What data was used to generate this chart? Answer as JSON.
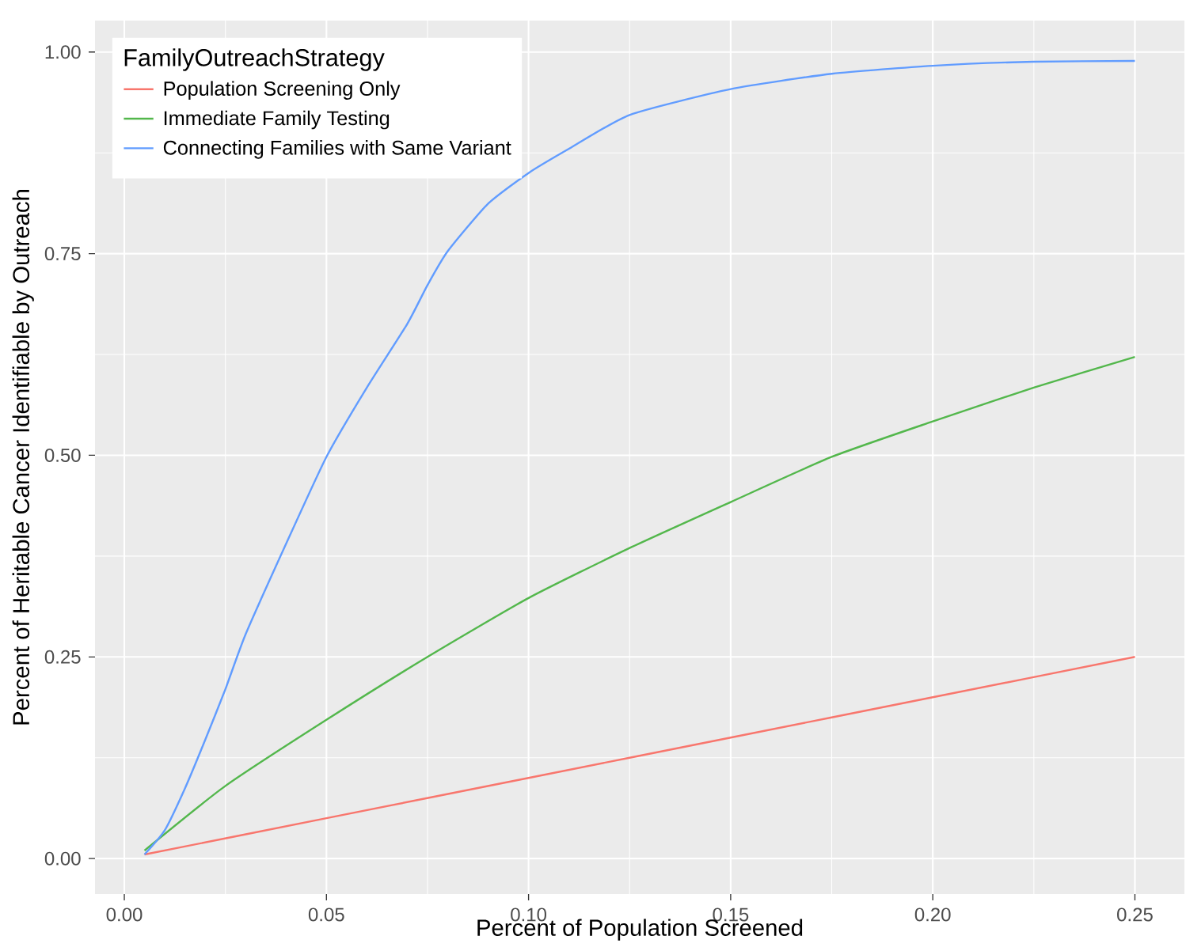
{
  "chart_data": {
    "type": "line",
    "xlabel": "Percent of Population Screened",
    "ylabel": "Percent of Heritable Cancer Identifiable by Outreach",
    "legend_title": "FamilyOutreachStrategy",
    "legend": "top left",
    "grid": true,
    "xlim": [
      -0.00725,
      0.26225
    ],
    "ylim": [
      -0.044,
      1.039
    ],
    "xticks": [
      {
        "value": 0,
        "label": "0.00"
      },
      {
        "value": 0.05,
        "label": "0.05"
      },
      {
        "value": 0.1,
        "label": "0.10"
      },
      {
        "value": 0.15,
        "label": "0.15"
      },
      {
        "value": 0.2,
        "label": "0.20"
      },
      {
        "value": 0.25,
        "label": "0.25"
      }
    ],
    "yticks": [
      {
        "value": 0,
        "label": "0.00"
      },
      {
        "value": 0.25,
        "label": "0.25"
      },
      {
        "value": 0.5,
        "label": "0.50"
      },
      {
        "value": 0.75,
        "label": "0.75"
      },
      {
        "value": 1,
        "label": "1.00"
      }
    ],
    "series": [
      {
        "name": "Population Screening Only",
        "color": "#f8766d",
        "x": [
          0.005,
          0.05,
          0.1,
          0.15,
          0.2,
          0.25
        ],
        "values": [
          0.005,
          0.05,
          0.1,
          0.15,
          0.2,
          0.25
        ]
      },
      {
        "name": "Immediate Family Testing",
        "color": "#53b74c",
        "x": [
          0.005,
          0.025,
          0.05,
          0.075,
          0.1,
          0.125,
          0.15,
          0.175,
          0.2,
          0.225,
          0.25
        ],
        "values": [
          0.01,
          0.09,
          0.172,
          0.25,
          0.323,
          0.385,
          0.442,
          0.498,
          0.542,
          0.584,
          0.622
        ]
      },
      {
        "name": "Connecting Families with Same Variant",
        "color": "#619cff",
        "x": [
          0.005,
          0.01,
          0.015,
          0.02,
          0.025,
          0.03,
          0.04,
          0.05,
          0.06,
          0.07,
          0.075,
          0.08,
          0.09,
          0.1,
          0.11,
          0.125,
          0.15,
          0.175,
          0.2,
          0.225,
          0.25
        ],
        "values": [
          0.005,
          0.035,
          0.087,
          0.147,
          0.21,
          0.278,
          0.39,
          0.498,
          0.584,
          0.663,
          0.711,
          0.753,
          0.812,
          0.85,
          0.88,
          0.922,
          0.954,
          0.973,
          0.983,
          0.988,
          0.989
        ]
      }
    ]
  }
}
